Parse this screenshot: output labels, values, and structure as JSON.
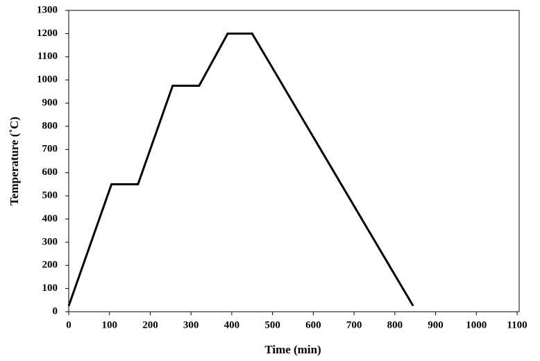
{
  "chart_data": {
    "type": "line",
    "x_label": "Time (min)",
    "y_label": "Temperature (˚C)",
    "series": [
      {
        "name": "Temperature",
        "color": "#000000",
        "x": [
          0,
          105,
          170,
          255,
          320,
          390,
          450,
          845
        ],
        "values": [
          25,
          550,
          550,
          975,
          975,
          1200,
          1200,
          25
        ]
      }
    ],
    "xlim": [
      0,
      1100
    ],
    "xticks": [
      0,
      100,
      200,
      300,
      400,
      500,
      600,
      700,
      800,
      900,
      1000,
      1100
    ],
    "ylim": [
      0,
      1300
    ],
    "yticks": [
      0,
      100,
      200,
      300,
      400,
      500,
      600,
      700,
      800,
      900,
      1000,
      1100,
      1200,
      1300
    ],
    "grid": false
  }
}
